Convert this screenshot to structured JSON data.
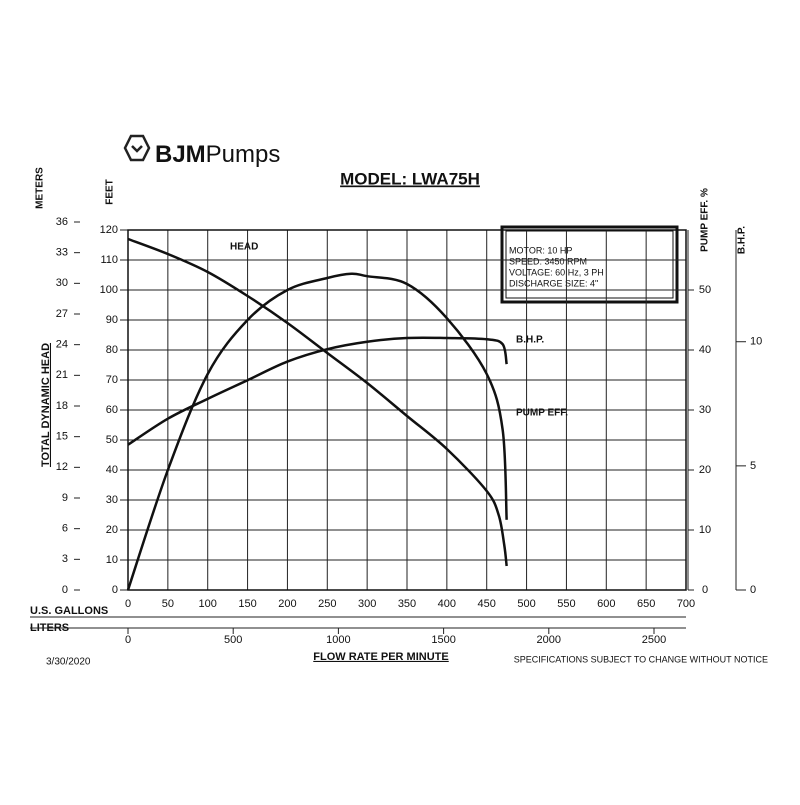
{
  "chart_data": {
    "type": "line",
    "logo_bold": "BJM",
    "logo_rest": "Pumps",
    "title": "MODEL: LWA75H",
    "specs": [
      "MOTOR: 10 HP",
      "SPEED: 3450 RPM",
      "VOLTAGE: 60 Hz, 3 PH",
      "DISCHARGE SIZE: 4\""
    ],
    "y_label": "FEET",
    "meters_label": "METERS",
    "head_label": "TOTAL DYNAMIC HEAD",
    "y2_label": "PUMP EFF. %",
    "y3_label": "B.H.P.",
    "x_label": "U.S. GALLONS",
    "liters_label": "LITERS",
    "flow_label": "FLOW RATE PER MINUTE",
    "date": "3/30/2020",
    "note": "SPECIFICATIONS SUBJECT TO CHANGE WITHOUT NOTICE",
    "xlim": [
      0,
      700
    ],
    "xticks": [
      0,
      50,
      100,
      150,
      200,
      250,
      300,
      350,
      400,
      450,
      500,
      550,
      600,
      650,
      700
    ],
    "liters_lim": [
      0,
      2650
    ],
    "liters_ticks": [
      0,
      500,
      1000,
      1500,
      2000,
      2500
    ],
    "ylim": [
      0,
      120
    ],
    "yticks": [
      0,
      10,
      20,
      30,
      40,
      50,
      60,
      70,
      80,
      90,
      100,
      110,
      120
    ],
    "meters_lim": [
      0,
      36
    ],
    "meters_ticks": [
      0,
      3,
      6,
      9,
      12,
      15,
      18,
      21,
      24,
      27,
      30,
      33,
      36
    ],
    "y2lim": [
      0,
      60
    ],
    "y2ticks": [
      0,
      10,
      20,
      30,
      40,
      50
    ],
    "y3lim": [
      0,
      14.5
    ],
    "y3ticks": [
      0,
      5,
      10
    ],
    "grid": true,
    "series": [
      {
        "name": "HEAD",
        "color": "#111111",
        "x": [
          0,
          50,
          100,
          150,
          200,
          250,
          300,
          350,
          400,
          450,
          465,
          472,
          475
        ],
        "values": [
          117,
          112,
          106,
          98,
          89,
          79,
          69,
          58,
          47,
          33,
          25,
          15,
          8
        ]
      },
      {
        "name": "PUMP EFF.",
        "color": "#111111",
        "axis": "y2",
        "x": [
          0,
          50,
          100,
          150,
          200,
          250,
          280,
          300,
          350,
          400,
          450,
          470,
          475
        ],
        "values": [
          0,
          20,
          36,
          45,
          50,
          52,
          52.7,
          52.3,
          51,
          45.3,
          36,
          26.7,
          11.7
        ]
      },
      {
        "name": "B.H.P.",
        "color": "#111111",
        "axis": "y3",
        "x": [
          0,
          50,
          100,
          150,
          200,
          250,
          300,
          350,
          400,
          450,
          470,
          475
        ],
        "values": [
          5.85,
          6.9,
          7.7,
          8.45,
          9.2,
          9.7,
          10,
          10.15,
          10.15,
          10.1,
          9.9,
          9.1
        ]
      }
    ]
  }
}
